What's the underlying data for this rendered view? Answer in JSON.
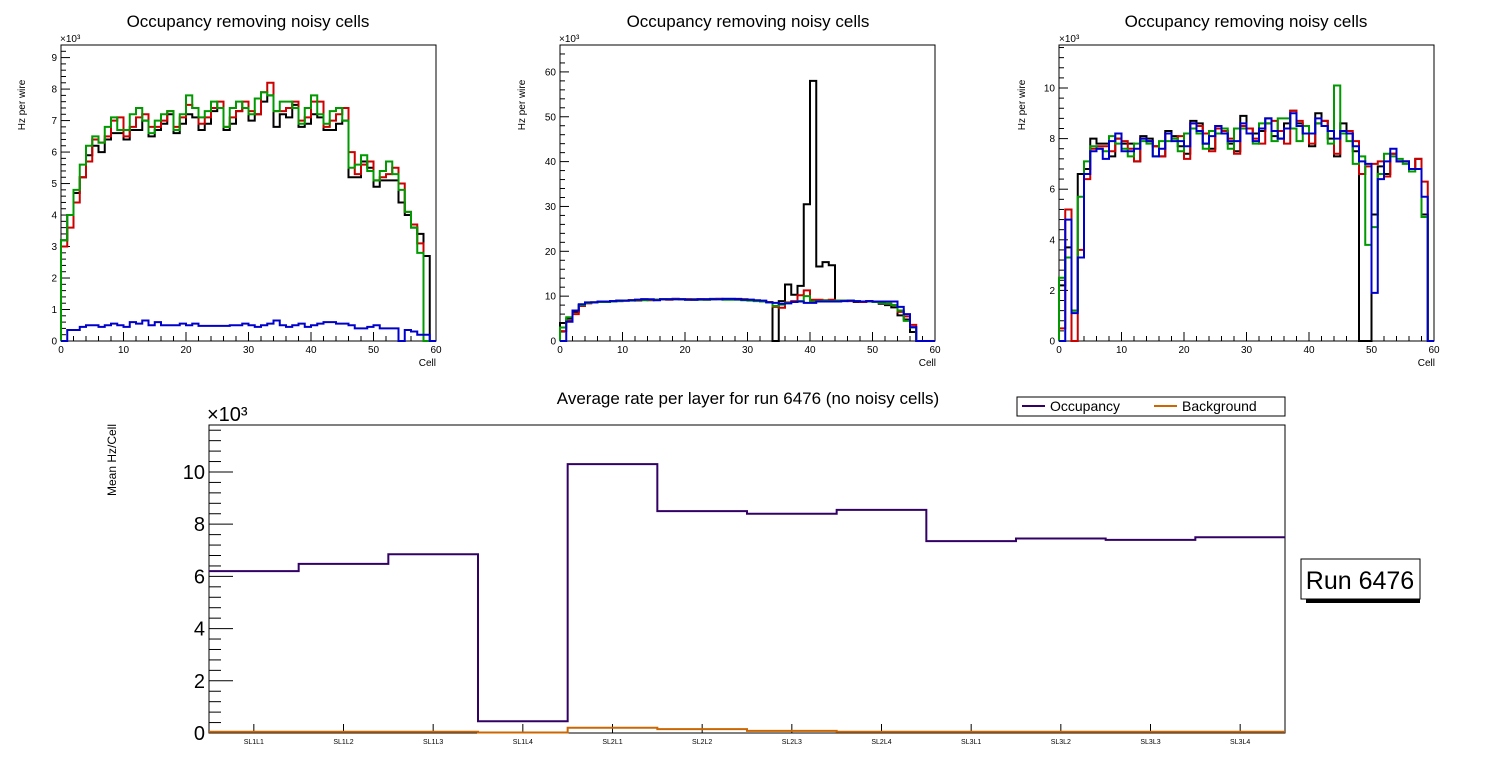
{
  "chart_data": [
    {
      "type": "line",
      "subtype": "step-histogram",
      "title": "Occupancy removing noisy cells",
      "xlabel": "Cell",
      "ylabel": "Hz per wire",
      "y_multiplier": "×10³",
      "xlim": [
        0,
        60
      ],
      "ylim": [
        0,
        9.4
      ],
      "x_major_ticks": [
        0,
        10,
        20,
        30,
        40,
        50,
        60
      ],
      "y_major_ticks": [
        0,
        1,
        2,
        3,
        4,
        5,
        6,
        7,
        8,
        9
      ],
      "bins": 60,
      "series": [
        {
          "name": "black",
          "color": "#000000",
          "values": [
            3.2,
            4.0,
            4.7,
            5.2,
            5.9,
            6.2,
            6.0,
            6.4,
            6.6,
            6.6,
            6.4,
            6.7,
            6.7,
            7.0,
            6.5,
            6.7,
            6.9,
            7.2,
            6.6,
            6.9,
            7.2,
            7.1,
            6.7,
            6.9,
            7.3,
            7.4,
            6.7,
            6.9,
            7.3,
            7.4,
            7.0,
            7.2,
            7.6,
            7.8,
            6.8,
            7.2,
            7.1,
            7.5,
            6.8,
            6.9,
            7.2,
            7.1,
            6.7,
            6.7,
            6.9,
            7.0,
            5.2,
            5.2,
            5.7,
            5.5,
            4.9,
            5.1,
            5.1,
            5.1,
            4.4,
            4.0,
            3.6,
            3.4,
            2.7,
            0
          ]
        },
        {
          "name": "red",
          "color": "#cc0000",
          "values": [
            3.0,
            3.6,
            4.4,
            5.2,
            5.7,
            6.4,
            6.3,
            6.5,
            7.0,
            7.1,
            6.5,
            6.8,
            7.1,
            7.2,
            6.8,
            6.8,
            7.0,
            7.3,
            6.8,
            7.1,
            7.5,
            7.4,
            6.9,
            7.1,
            7.4,
            7.6,
            6.8,
            7.1,
            7.3,
            7.6,
            7.3,
            7.2,
            7.9,
            8.2,
            7.3,
            7.3,
            7.4,
            7.6,
            7.0,
            7.1,
            7.6,
            7.6,
            6.8,
            7.0,
            7.2,
            7.4,
            6.0,
            5.3,
            5.6,
            5.7,
            5.1,
            5.2,
            5.3,
            5.5,
            5.0,
            4.1,
            3.7,
            3.1,
            0,
            0
          ]
        },
        {
          "name": "green",
          "color": "#009900",
          "values": [
            3.2,
            4.0,
            4.8,
            5.6,
            6.2,
            6.5,
            6.3,
            6.8,
            7.1,
            6.7,
            6.7,
            7.2,
            7.4,
            7.0,
            6.6,
            7.0,
            7.2,
            7.3,
            6.7,
            7.2,
            7.8,
            7.4,
            7.1,
            7.3,
            7.6,
            7.4,
            6.8,
            7.4,
            7.6,
            7.4,
            7.2,
            7.7,
            7.9,
            7.8,
            7.3,
            7.6,
            7.6,
            7.4,
            6.9,
            7.4,
            7.8,
            7.2,
            6.9,
            7.3,
            7.4,
            7.0,
            5.5,
            5.6,
            5.9,
            5.4,
            5.1,
            5.4,
            5.7,
            5.3,
            4.8,
            4.1,
            3.6,
            2.8,
            0,
            0
          ]
        },
        {
          "name": "blue",
          "color": "#0000cc",
          "values": [
            0,
            0.35,
            0.35,
            0.45,
            0.5,
            0.5,
            0.45,
            0.5,
            0.55,
            0.5,
            0.45,
            0.6,
            0.55,
            0.65,
            0.5,
            0.6,
            0.5,
            0.5,
            0.5,
            0.55,
            0.5,
            0.55,
            0.48,
            0.48,
            0.48,
            0.48,
            0.48,
            0.5,
            0.5,
            0.55,
            0.5,
            0.45,
            0.5,
            0.55,
            0.65,
            0.5,
            0.45,
            0.5,
            0.55,
            0.45,
            0.5,
            0.55,
            0.6,
            0.6,
            0.55,
            0.55,
            0.5,
            0.4,
            0.4,
            0.45,
            0.5,
            0.4,
            0.4,
            0.4,
            0,
            0.35,
            0.3,
            0.2,
            0.2,
            0
          ]
        }
      ]
    },
    {
      "type": "line",
      "subtype": "step-histogram",
      "title": "Occupancy removing noisy cells",
      "xlabel": "Cell",
      "ylabel": "Hz per wire",
      "y_multiplier": "×10³",
      "xlim": [
        0,
        60
      ],
      "ylim": [
        0,
        66
      ],
      "x_major_ticks": [
        0,
        10,
        20,
        30,
        40,
        50,
        60
      ],
      "y_major_ticks": [
        0,
        10,
        20,
        30,
        40,
        50,
        60
      ],
      "bins": 60,
      "series": [
        {
          "name": "black",
          "color": "#000000",
          "values": [
            4.0,
            5.0,
            6.5,
            8.0,
            8.5,
            8.6,
            8.7,
            8.8,
            8.9,
            9.0,
            9.0,
            9.1,
            9.2,
            9.3,
            9.2,
            9.2,
            9.3,
            9.3,
            9.4,
            9.3,
            9.3,
            9.3,
            9.3,
            9.3,
            9.4,
            9.4,
            9.4,
            9.4,
            9.4,
            9.3,
            9.2,
            9.0,
            8.8,
            8.7,
            0,
            8.9,
            12.6,
            10.3,
            12.3,
            30.5,
            58.0,
            16.6,
            17.6,
            16.9,
            9.0,
            9.0,
            9.0,
            8.7,
            8.7,
            8.9,
            8.7,
            8.3,
            8.0,
            7.5,
            5.7,
            4.8,
            2.0,
            0,
            0,
            0
          ]
        },
        {
          "name": "red",
          "color": "#cc0000",
          "values": [
            2.2,
            4.5,
            6.0,
            7.8,
            8.4,
            8.6,
            8.7,
            8.7,
            8.8,
            8.9,
            9.0,
            9.1,
            9.0,
            9.2,
            9.1,
            9.2,
            9.3,
            9.2,
            9.4,
            9.3,
            9.3,
            9.2,
            9.3,
            9.2,
            9.3,
            9.4,
            9.3,
            9.3,
            9.3,
            9.2,
            9.1,
            9.0,
            8.9,
            8.7,
            7.6,
            7.4,
            8.6,
            8.9,
            10.2,
            11.3,
            9.2,
            9.2,
            9.1,
            9.2,
            9.0,
            9.0,
            8.9,
            8.8,
            8.7,
            8.9,
            8.8,
            8.5,
            8.3,
            8.0,
            6.5,
            5.5,
            3.6,
            0,
            0,
            0
          ]
        },
        {
          "name": "green",
          "color": "#009900",
          "values": [
            3.0,
            5.3,
            6.8,
            8.0,
            8.5,
            8.6,
            8.7,
            8.7,
            8.8,
            8.9,
            9.0,
            9.0,
            9.1,
            9.1,
            9.2,
            9.2,
            9.3,
            9.3,
            9.3,
            9.3,
            9.2,
            9.2,
            9.2,
            9.2,
            9.3,
            9.3,
            9.2,
            9.2,
            9.2,
            9.1,
            9.0,
            8.9,
            8.8,
            8.6,
            7.8,
            8.1,
            8.5,
            8.7,
            8.9,
            10.0,
            8.8,
            8.9,
            9.0,
            8.9,
            9.0,
            9.0,
            9.0,
            8.9,
            8.8,
            8.8,
            8.7,
            8.5,
            8.3,
            8.0,
            6.8,
            4.5,
            3.0,
            0,
            0,
            0
          ]
        },
        {
          "name": "blue",
          "color": "#0000cc",
          "values": [
            0,
            4.3,
            6.8,
            8.2,
            8.6,
            8.6,
            8.8,
            8.8,
            8.9,
            9.0,
            9.0,
            9.1,
            9.2,
            9.3,
            9.3,
            9.1,
            9.3,
            9.3,
            9.3,
            9.3,
            9.2,
            9.2,
            9.3,
            9.3,
            9.3,
            9.3,
            9.4,
            9.4,
            9.3,
            9.2,
            9.2,
            9.1,
            9.0,
            8.6,
            8.5,
            8.3,
            8.4,
            8.7,
            8.8,
            8.5,
            8.5,
            8.8,
            8.8,
            8.8,
            8.8,
            8.9,
            9.0,
            8.9,
            8.8,
            8.9,
            8.8,
            8.8,
            8.8,
            8.8,
            7.6,
            6.0,
            3.1,
            0,
            0,
            0
          ]
        }
      ]
    },
    {
      "type": "line",
      "subtype": "step-histogram",
      "title": "Occupancy removing noisy cells",
      "xlabel": "Cell",
      "ylabel": "Hz per wire",
      "y_multiplier": "×10³",
      "xlim": [
        0,
        60
      ],
      "ylim": [
        0,
        11.7
      ],
      "x_major_ticks": [
        0,
        10,
        20,
        30,
        40,
        50,
        60
      ],
      "y_major_ticks": [
        0,
        2,
        4,
        6,
        8,
        10
      ],
      "bins": 60,
      "series": [
        {
          "name": "black",
          "color": "#000000",
          "values": [
            2.2,
            3.7,
            1.2,
            6.6,
            6.8,
            8.0,
            7.8,
            7.8,
            7.3,
            8.0,
            7.8,
            7.8,
            7.1,
            8.1,
            8.0,
            7.7,
            7.3,
            8.3,
            8.1,
            7.7,
            7.4,
            8.7,
            8.6,
            7.8,
            7.6,
            8.5,
            8.3,
            7.8,
            7.5,
            8.9,
            8.4,
            8.2,
            8.3,
            8.8,
            8.1,
            8.0,
            8.6,
            9.1,
            8.6,
            8.2,
            7.7,
            9.0,
            8.7,
            8.0,
            7.3,
            8.6,
            8.2,
            7.5,
            0,
            0,
            5.0,
            6.9,
            6.6,
            7.4,
            7.1,
            7.1,
            6.8,
            7.2,
            5.0,
            0
          ]
        },
        {
          "name": "red",
          "color": "#cc0000",
          "values": [
            0.5,
            5.2,
            0,
            3.6,
            6.4,
            7.6,
            7.7,
            7.7,
            7.5,
            8.0,
            7.9,
            7.6,
            7.1,
            8.0,
            7.9,
            7.7,
            7.3,
            8.2,
            8.0,
            8.1,
            7.2,
            8.6,
            8.5,
            8.2,
            7.5,
            8.4,
            8.3,
            8.0,
            7.4,
            8.5,
            8.4,
            8.0,
            7.8,
            8.6,
            8.7,
            8.3,
            7.8,
            9.1,
            8.7,
            8.2,
            7.8,
            8.6,
            8.7,
            8.3,
            7.4,
            8.3,
            8.3,
            7.9,
            6.6,
            6.9,
            7.0,
            7.1,
            6.5,
            7.4,
            7.1,
            7.1,
            6.8,
            7.2,
            6.3,
            0
          ]
        },
        {
          "name": "green",
          "color": "#009900",
          "values": [
            2.5,
            3.3,
            1.2,
            5.7,
            7.1,
            7.7,
            7.6,
            7.5,
            8.1,
            7.8,
            7.6,
            7.3,
            7.8,
            7.9,
            7.8,
            7.3,
            7.9,
            7.9,
            8.0,
            7.5,
            8.2,
            8.4,
            8.2,
            7.6,
            8.3,
            8.2,
            8.4,
            7.6,
            8.4,
            8.4,
            8.2,
            7.8,
            8.6,
            8.6,
            7.9,
            8.8,
            8.8,
            8.4,
            7.9,
            8.5,
            8.2,
            8.6,
            8.5,
            7.8,
            10.1,
            8.2,
            7.9,
            7.0,
            7.3,
            3.8,
            4.5,
            6.6,
            7.4,
            7.3,
            7.2,
            7.0,
            6.7,
            6.8,
            4.9,
            0
          ]
        },
        {
          "name": "blue",
          "color": "#0000cc",
          "values": [
            0,
            4.8,
            1.1,
            3.3,
            6.6,
            7.5,
            7.6,
            7.2,
            7.9,
            8.2,
            7.5,
            7.5,
            7.6,
            8.0,
            7.9,
            7.3,
            7.6,
            8.2,
            7.9,
            7.9,
            7.7,
            8.6,
            8.3,
            7.8,
            8.1,
            8.5,
            8.2,
            7.9,
            7.9,
            8.6,
            8.2,
            7.9,
            8.4,
            8.8,
            8.3,
            8.0,
            8.4,
            9.0,
            8.5,
            8.2,
            8.2,
            8.8,
            8.5,
            8.3,
            8.0,
            8.3,
            8.2,
            7.7,
            7.1,
            7.0,
            1.9,
            6.4,
            7.1,
            7.6,
            7.1,
            7.1,
            6.8,
            6.8,
            5.7,
            0
          ]
        }
      ]
    },
    {
      "type": "line",
      "subtype": "step-histogram",
      "title": "Average rate per layer for run 6476 (no noisy cells)",
      "xlabel": "",
      "ylabel": "Mean Hz/Cell",
      "y_multiplier": "×10³",
      "ylim": [
        0,
        11.8
      ],
      "y_major_ticks": [
        0,
        2,
        4,
        6,
        8,
        10
      ],
      "categories": [
        "SL1L1",
        "SL1L2",
        "SL1L3",
        "SL1L4",
        "SL2L1",
        "SL2L2",
        "SL2L3",
        "SL2L4",
        "SL3L1",
        "SL3L2",
        "SL3L3",
        "SL3L4"
      ],
      "legend": {
        "placement": "top-right",
        "entries": [
          "Occupancy",
          "Background"
        ]
      },
      "annotation": "Run 6476",
      "series": [
        {
          "name": "Occupancy",
          "color": "#330066",
          "values": [
            6.2,
            6.48,
            6.85,
            0.45,
            10.3,
            8.5,
            8.4,
            8.55,
            7.35,
            7.45,
            7.4,
            7.5
          ]
        },
        {
          "name": "Background",
          "color": "#cc6600",
          "values": [
            0.05,
            0.05,
            0.05,
            0.02,
            0.2,
            0.15,
            0.08,
            0.05,
            0.05,
            0.05,
            0.05,
            0.05
          ]
        }
      ]
    }
  ]
}
